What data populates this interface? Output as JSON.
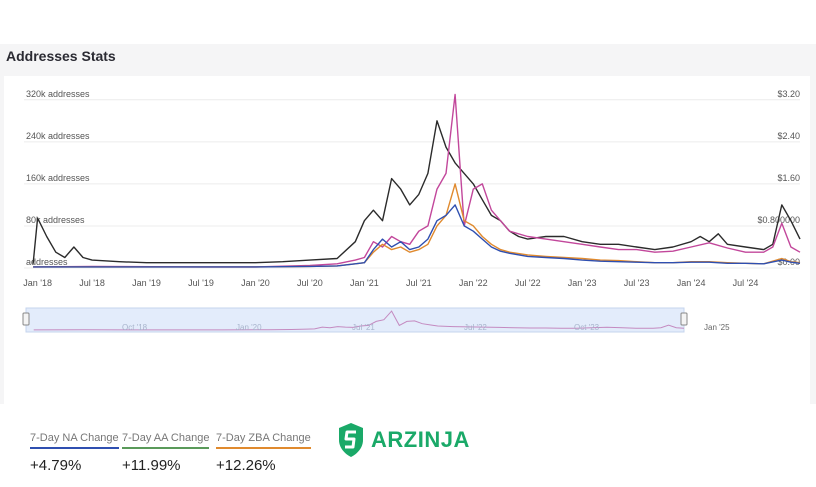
{
  "title": "Addresses Stats",
  "stats": [
    {
      "label": "7-Day NA Change",
      "value": "+4.79%",
      "color": "#2f4fb0"
    },
    {
      "label": "7-Day AA Change",
      "value": "+11.99%",
      "color": "#5a9a5a"
    },
    {
      "label": "7-Day ZBA Change",
      "value": "+12.26%",
      "color": "#e08a2e"
    }
  ],
  "logo": {
    "text": "ARZINJA",
    "color": "#1aa968",
    "icon": "arzinja-logo-icon"
  },
  "navigator": {
    "labels": [
      "Oct '18",
      "Jan '20",
      "Jul '21",
      "Jul '22",
      "Oct '23",
      "Jan '25"
    ]
  },
  "chart_data": {
    "type": "line",
    "left_axis": {
      "ticks": [
        0,
        80000,
        160000,
        240000,
        320000
      ],
      "labels": [
        "addresses",
        "80k addresses",
        "160k addresses",
        "240k addresses",
        "320k addresses"
      ],
      "range": [
        0,
        350000
      ]
    },
    "right_axis": {
      "ticks": [
        0,
        0.8,
        1.6,
        2.4,
        3.2
      ],
      "labels": [
        "$0.00",
        "$0.800000",
        "$1.60",
        "$2.40",
        "$3.20"
      ],
      "range": [
        0,
        3.5
      ]
    },
    "x_ticks": [
      "Jan '18",
      "Jul '18",
      "Jan '19",
      "Jul '19",
      "Jan '20",
      "Jul '20",
      "Jan '21",
      "Jul '21",
      "Jan '22",
      "Jul '22",
      "Jan '23",
      "Jul '23",
      "Jan '24",
      "Jul '24"
    ],
    "x_tick_months": [
      0,
      6,
      12,
      18,
      24,
      30,
      36,
      42,
      48,
      54,
      60,
      66,
      72,
      78
    ],
    "x_range_months": [
      -1.5,
      84
    ],
    "series": [
      {
        "key": "price",
        "color": "#2b2b2b",
        "axis": "right",
        "points": [
          [
            -0.5,
            0.08
          ],
          [
            0,
            0.95
          ],
          [
            1,
            0.6
          ],
          [
            2,
            0.3
          ],
          [
            3,
            0.2
          ],
          [
            4,
            0.4
          ],
          [
            5,
            0.2
          ],
          [
            6,
            0.15
          ],
          [
            9,
            0.12
          ],
          [
            12,
            0.1
          ],
          [
            18,
            0.1
          ],
          [
            24,
            0.1
          ],
          [
            27,
            0.12
          ],
          [
            30,
            0.15
          ],
          [
            33,
            0.18
          ],
          [
            35,
            0.5
          ],
          [
            36,
            0.9
          ],
          [
            37,
            1.1
          ],
          [
            38,
            0.9
          ],
          [
            39,
            1.7
          ],
          [
            40,
            1.5
          ],
          [
            41,
            1.2
          ],
          [
            42,
            1.4
          ],
          [
            43,
            1.8
          ],
          [
            44,
            2.8
          ],
          [
            45,
            2.3
          ],
          [
            46,
            2.0
          ],
          [
            47,
            1.8
          ],
          [
            48,
            1.6
          ],
          [
            49,
            1.3
          ],
          [
            50,
            1.0
          ],
          [
            51,
            0.9
          ],
          [
            52,
            0.7
          ],
          [
            53,
            0.6
          ],
          [
            54,
            0.55
          ],
          [
            56,
            0.6
          ],
          [
            58,
            0.6
          ],
          [
            60,
            0.5
          ],
          [
            62,
            0.45
          ],
          [
            64,
            0.45
          ],
          [
            66,
            0.4
          ],
          [
            68,
            0.35
          ],
          [
            70,
            0.4
          ],
          [
            72,
            0.5
          ],
          [
            73,
            0.6
          ],
          [
            74,
            0.5
          ],
          [
            75,
            0.65
          ],
          [
            76,
            0.45
          ],
          [
            78,
            0.4
          ],
          [
            80,
            0.35
          ],
          [
            81,
            0.45
          ],
          [
            82,
            1.2
          ],
          [
            83,
            0.9
          ],
          [
            84,
            0.55
          ]
        ]
      },
      {
        "key": "pink",
        "color": "#c2479b",
        "axis": "left",
        "points": [
          [
            -0.5,
            2000
          ],
          [
            6,
            3000
          ],
          [
            18,
            2000
          ],
          [
            24,
            2000
          ],
          [
            30,
            5000
          ],
          [
            33,
            8000
          ],
          [
            35,
            15000
          ],
          [
            36,
            20000
          ],
          [
            37,
            50000
          ],
          [
            38,
            40000
          ],
          [
            39,
            60000
          ],
          [
            40,
            50000
          ],
          [
            41,
            45000
          ],
          [
            42,
            70000
          ],
          [
            43,
            80000
          ],
          [
            44,
            150000
          ],
          [
            45,
            180000
          ],
          [
            46,
            330000
          ],
          [
            47,
            80000
          ],
          [
            48,
            150000
          ],
          [
            49,
            160000
          ],
          [
            50,
            110000
          ],
          [
            51,
            90000
          ],
          [
            52,
            70000
          ],
          [
            54,
            60000
          ],
          [
            56,
            55000
          ],
          [
            58,
            50000
          ],
          [
            60,
            45000
          ],
          [
            62,
            40000
          ],
          [
            64,
            35000
          ],
          [
            66,
            35000
          ],
          [
            68,
            30000
          ],
          [
            70,
            32000
          ],
          [
            72,
            40000
          ],
          [
            74,
            48000
          ],
          [
            76,
            38000
          ],
          [
            78,
            30000
          ],
          [
            80,
            30000
          ],
          [
            81,
            40000
          ],
          [
            82,
            85000
          ],
          [
            83,
            40000
          ],
          [
            84,
            30000
          ]
        ]
      },
      {
        "key": "ZBA",
        "color": "#e08a2e",
        "axis": "left",
        "points": [
          [
            -0.5,
            2000
          ],
          [
            6,
            2000
          ],
          [
            18,
            2000
          ],
          [
            24,
            2000
          ],
          [
            30,
            3000
          ],
          [
            33,
            4000
          ],
          [
            35,
            8000
          ],
          [
            36,
            10000
          ],
          [
            37,
            30000
          ],
          [
            38,
            45000
          ],
          [
            39,
            35000
          ],
          [
            40,
            40000
          ],
          [
            41,
            30000
          ],
          [
            42,
            35000
          ],
          [
            43,
            45000
          ],
          [
            44,
            80000
          ],
          [
            45,
            100000
          ],
          [
            46,
            160000
          ],
          [
            47,
            90000
          ],
          [
            48,
            80000
          ],
          [
            49,
            60000
          ],
          [
            50,
            45000
          ],
          [
            51,
            35000
          ],
          [
            52,
            30000
          ],
          [
            54,
            25000
          ],
          [
            56,
            22000
          ],
          [
            58,
            20000
          ],
          [
            60,
            18000
          ],
          [
            62,
            15000
          ],
          [
            64,
            14000
          ],
          [
            66,
            12000
          ],
          [
            68,
            10000
          ],
          [
            70,
            10000
          ],
          [
            72,
            12000
          ],
          [
            74,
            12000
          ],
          [
            76,
            10000
          ],
          [
            78,
            9000
          ],
          [
            80,
            8000
          ],
          [
            82,
            18000
          ],
          [
            83,
            12000
          ],
          [
            84,
            10000
          ]
        ]
      },
      {
        "key": "NA",
        "color": "#2f4fb0",
        "axis": "left",
        "points": [
          [
            -0.5,
            2000
          ],
          [
            6,
            2000
          ],
          [
            18,
            2000
          ],
          [
            24,
            2000
          ],
          [
            30,
            3000
          ],
          [
            33,
            4000
          ],
          [
            35,
            8000
          ],
          [
            36,
            10000
          ],
          [
            37,
            35000
          ],
          [
            38,
            55000
          ],
          [
            39,
            40000
          ],
          [
            40,
            50000
          ],
          [
            41,
            35000
          ],
          [
            42,
            40000
          ],
          [
            43,
            55000
          ],
          [
            44,
            90000
          ],
          [
            45,
            100000
          ],
          [
            46,
            120000
          ],
          [
            47,
            80000
          ],
          [
            48,
            70000
          ],
          [
            49,
            55000
          ],
          [
            50,
            40000
          ],
          [
            51,
            32000
          ],
          [
            52,
            28000
          ],
          [
            54,
            22000
          ],
          [
            56,
            20000
          ],
          [
            58,
            18000
          ],
          [
            60,
            15000
          ],
          [
            62,
            13000
          ],
          [
            64,
            12000
          ],
          [
            66,
            11000
          ],
          [
            68,
            10000
          ],
          [
            70,
            10000
          ],
          [
            72,
            11000
          ],
          [
            74,
            11000
          ],
          [
            76,
            9000
          ],
          [
            78,
            9000
          ],
          [
            80,
            8000
          ],
          [
            82,
            15000
          ],
          [
            83,
            11000
          ],
          [
            84,
            9000
          ]
        ]
      }
    ]
  }
}
